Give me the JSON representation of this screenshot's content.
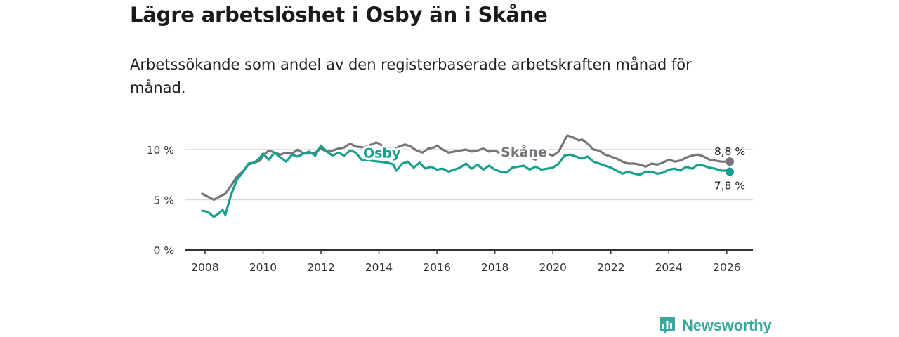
{
  "title": "Lägre arbetslöshet i Osby än i Skåne",
  "subtitle": "Arbetssökande som andel av den registerbaserade arbetskraften månad för månad.",
  "brand": {
    "name": "Newsworthy",
    "icon": "newsworthy-logo-icon",
    "color": "#3aa79c"
  },
  "chart_data": {
    "type": "line",
    "title": "Lägre arbetslöshet i Osby än i Skåne",
    "xlabel": "",
    "ylabel": "",
    "xlim": [
      2007.3,
      2026.9
    ],
    "ylim": [
      0,
      10
    ],
    "x_ticks": [
      2008,
      2010,
      2012,
      2014,
      2016,
      2018,
      2020,
      2022,
      2024,
      2026
    ],
    "x_tick_labels": [
      "2008",
      "2010",
      "2012",
      "2014",
      "2016",
      "2018",
      "2020",
      "2022",
      "2024",
      "2026"
    ],
    "y_ticks": [
      0,
      5,
      10
    ],
    "y_tick_labels": [
      "0 %",
      "5 %",
      "10 %"
    ],
    "grid": "horizontal",
    "series": [
      {
        "name": "Skåne",
        "color": "#76757c",
        "end_label": "8,8 %",
        "x": [
          2007.9,
          2008.1,
          2008.3,
          2008.5,
          2008.7,
          2008.9,
          2009.1,
          2009.3,
          2009.5,
          2009.7,
          2009.9,
          2010.0,
          2010.2,
          2010.4,
          2010.6,
          2010.8,
          2011.0,
          2011.2,
          2011.4,
          2011.6,
          2011.8,
          2012.0,
          2012.2,
          2012.4,
          2012.6,
          2012.8,
          2013.0,
          2013.2,
          2013.5,
          2013.9,
          2014.0,
          2014.2,
          2014.5,
          2014.7,
          2014.9,
          2015.1,
          2015.3,
          2015.5,
          2015.7,
          2015.9,
          2016.0,
          2016.2,
          2016.4,
          2016.6,
          2016.8,
          2017.0,
          2017.2,
          2017.4,
          2017.6,
          2017.8,
          2018.0,
          2018.2,
          2018.4,
          2018.6,
          2018.8,
          2019.0,
          2019.2,
          2019.4,
          2019.6,
          2019.8,
          2020.0,
          2020.2,
          2020.4,
          2020.5,
          2020.7,
          2020.9,
          2021.0,
          2021.2,
          2021.4,
          2021.6,
          2021.8,
          2022.0,
          2022.2,
          2022.4,
          2022.6,
          2022.8,
          2023.0,
          2023.2,
          2023.4,
          2023.6,
          2023.8,
          2024.0,
          2024.2,
          2024.4,
          2024.6,
          2024.8,
          2025.0,
          2025.2,
          2025.4,
          2025.6,
          2025.8,
          2026.0,
          2026.1
        ],
        "values": [
          5.6,
          5.3,
          5.0,
          5.3,
          5.6,
          6.4,
          7.3,
          7.8,
          8.5,
          8.7,
          8.9,
          9.4,
          9.9,
          9.7,
          9.5,
          9.7,
          9.6,
          10.0,
          9.6,
          9.6,
          9.7,
          10.1,
          9.8,
          9.9,
          10.1,
          10.2,
          10.6,
          10.3,
          10.2,
          10.7,
          10.6,
          10.2,
          10.0,
          10.3,
          10.5,
          10.3,
          9.9,
          9.7,
          10.1,
          10.2,
          10.4,
          10.0,
          9.7,
          9.8,
          9.9,
          10.0,
          9.8,
          9.9,
          10.1,
          9.8,
          9.9,
          9.6,
          9.2,
          9.2,
          9.3,
          9.3,
          9.2,
          9.0,
          9.5,
          9.6,
          9.4,
          9.8,
          10.9,
          11.4,
          11.2,
          10.9,
          11.0,
          10.6,
          10.0,
          9.9,
          9.5,
          9.3,
          9.1,
          8.8,
          8.6,
          8.6,
          8.5,
          8.3,
          8.6,
          8.5,
          8.7,
          9.0,
          8.8,
          8.9,
          9.2,
          9.4,
          9.5,
          9.3,
          9.0,
          8.9,
          8.8,
          8.8,
          8.8
        ]
      },
      {
        "name": "Osby",
        "color": "#17a08e",
        "end_label": "7,8 %",
        "x": [
          2007.9,
          2008.1,
          2008.3,
          2008.5,
          2008.6,
          2008.7,
          2008.9,
          2009.1,
          2009.3,
          2009.5,
          2009.7,
          2009.9,
          2010.0,
          2010.2,
          2010.4,
          2010.6,
          2010.8,
          2011.0,
          2011.2,
          2011.4,
          2011.6,
          2011.8,
          2012.0,
          2012.2,
          2012.4,
          2012.6,
          2012.8,
          2013.0,
          2013.2,
          2013.4,
          2014.3,
          2014.5,
          2014.6,
          2014.8,
          2015.0,
          2015.2,
          2015.4,
          2015.6,
          2015.8,
          2016.0,
          2016.2,
          2016.4,
          2016.6,
          2016.8,
          2017.0,
          2017.2,
          2017.4,
          2017.6,
          2017.8,
          2018.0,
          2018.2,
          2018.4,
          2018.6,
          2018.8,
          2019.0,
          2019.2,
          2019.4,
          2019.6,
          2019.8,
          2020.0,
          2020.2,
          2020.4,
          2020.6,
          2020.8,
          2021.0,
          2021.2,
          2021.4,
          2021.6,
          2021.8,
          2022.0,
          2022.2,
          2022.4,
          2022.6,
          2022.8,
          2023.0,
          2023.2,
          2023.4,
          2023.6,
          2023.8,
          2024.0,
          2024.2,
          2024.4,
          2024.6,
          2024.8,
          2025.0,
          2025.2,
          2025.4,
          2025.6,
          2025.8,
          2026.0,
          2026.1
        ],
        "values": [
          3.9,
          3.8,
          3.3,
          3.7,
          4.0,
          3.5,
          5.5,
          7.0,
          7.7,
          8.6,
          8.7,
          9.2,
          9.6,
          9.0,
          9.7,
          9.2,
          8.8,
          9.5,
          9.3,
          9.6,
          9.8,
          9.4,
          10.4,
          9.8,
          9.4,
          9.7,
          9.4,
          9.9,
          9.7,
          9.0,
          8.7,
          8.5,
          7.9,
          8.6,
          8.8,
          8.2,
          8.7,
          8.1,
          8.3,
          8.0,
          8.1,
          7.8,
          8.0,
          8.2,
          8.6,
          8.1,
          8.5,
          8.0,
          8.4,
          8.0,
          7.8,
          7.7,
          8.2,
          8.3,
          8.4,
          8.0,
          8.3,
          8.0,
          8.1,
          8.2,
          8.6,
          9.4,
          9.5,
          9.3,
          9.1,
          9.3,
          8.8,
          8.6,
          8.4,
          8.2,
          7.9,
          7.6,
          7.8,
          7.6,
          7.5,
          7.8,
          7.8,
          7.6,
          7.7,
          8.0,
          8.1,
          7.9,
          8.3,
          8.1,
          8.5,
          8.4,
          8.2,
          8.1,
          7.9,
          7.9,
          7.8
        ]
      }
    ],
    "series_labels": [
      {
        "text": "Osby",
        "series": "Osby",
        "x": 2014.1,
        "y": 9.7
      },
      {
        "text": "Skåne",
        "series": "Skåne",
        "x": 2019.0,
        "y": 9.8
      }
    ]
  }
}
